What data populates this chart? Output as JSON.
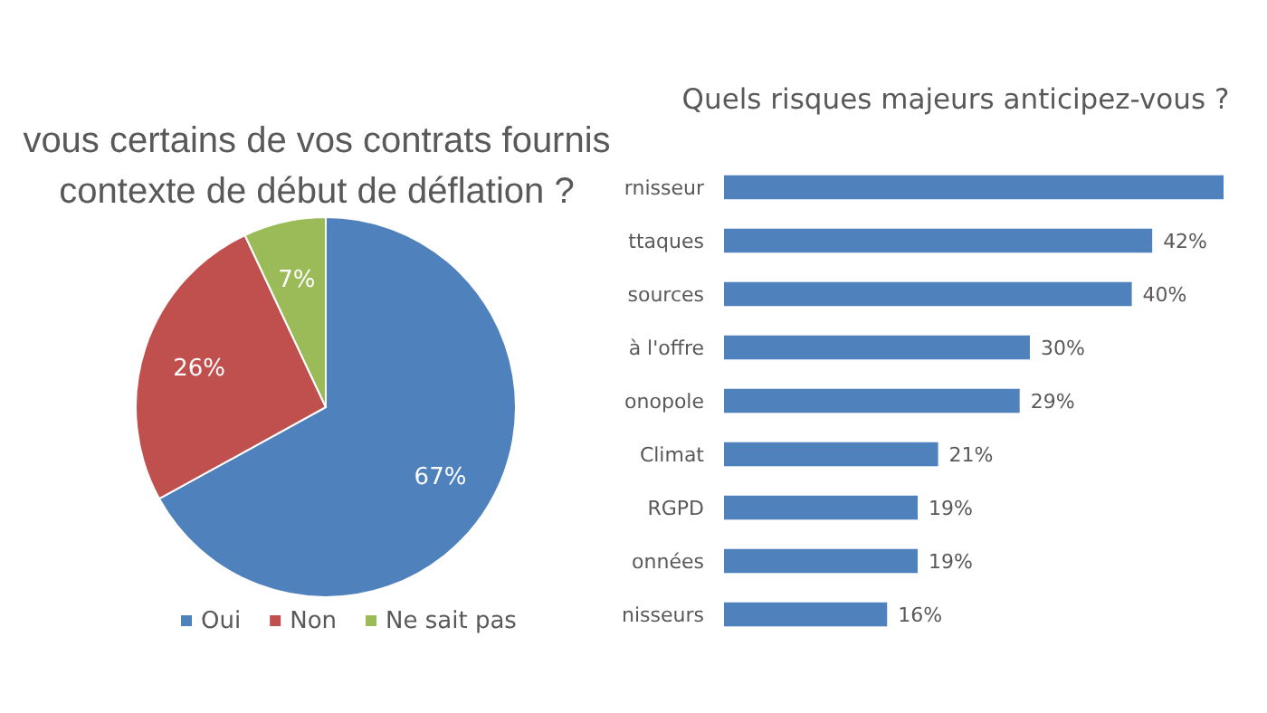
{
  "chart_data": [
    {
      "type": "pie",
      "title": "vous certains de vos contrats fournis\ncontexte de début de déflation ?",
      "categories": [
        "Oui",
        "Non",
        "Ne sait pas"
      ],
      "values": [
        67,
        26,
        7
      ],
      "colors": [
        "#4f81bd",
        "#c0504d",
        "#9bbb59"
      ],
      "value_labels": [
        "67%",
        "26%",
        "7%"
      ],
      "legend": "bottom"
    },
    {
      "type": "bar",
      "orientation": "horizontal",
      "title": "Quels risques majeurs anticipez-vous ?",
      "categories": [
        "rnisseur",
        "ttaques",
        "sources",
        "à l'offre",
        "onopole",
        "Climat",
        "RGPD",
        "onnées",
        "nisseurs"
      ],
      "values": [
        49,
        42,
        40,
        30,
        29,
        21,
        19,
        19,
        16
      ],
      "value_labels": [
        null,
        "42%",
        "40%",
        "30%",
        "29%",
        "21%",
        "19%",
        "19%",
        "16%"
      ],
      "color": "#4f81bd"
    }
  ]
}
